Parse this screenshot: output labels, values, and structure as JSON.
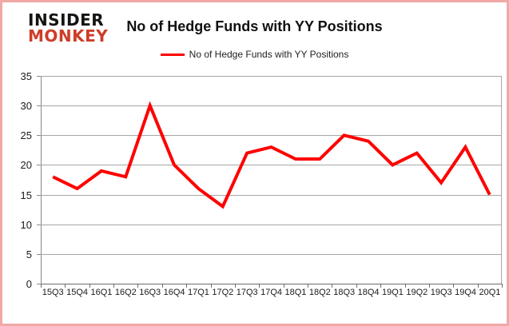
{
  "logo": {
    "line1": "INSIDER",
    "line2": "MONKEY",
    "line1_color": "#161413",
    "line2_color": "#ce3c28"
  },
  "title": "No of Hedge Funds with YY Positions",
  "legend": {
    "label": "No of Hedge Funds with YY Positions",
    "swatch_color": "#ff0000"
  },
  "frame_border_color": "#f0a9a6",
  "chart_data": {
    "type": "line",
    "title": "No of Hedge Funds with YY Positions",
    "xlabel": "",
    "ylabel": "",
    "categories": [
      "15Q3",
      "15Q4",
      "16Q1",
      "16Q2",
      "16Q3",
      "16Q4",
      "17Q1",
      "17Q2",
      "17Q3",
      "17Q4",
      "18Q1",
      "18Q2",
      "18Q3",
      "18Q4",
      "19Q1",
      "19Q2",
      "19Q3",
      "19Q4",
      "20Q1"
    ],
    "series": [
      {
        "name": "No of Hedge Funds with YY Positions",
        "color": "#ff0000",
        "line_width": 4,
        "values": [
          18,
          16,
          19,
          18,
          30,
          20,
          16,
          13,
          22,
          23,
          21,
          21,
          25,
          24,
          20,
          22,
          17,
          23,
          15
        ]
      }
    ],
    "ylim": [
      0,
      35
    ],
    "yticks": [
      0,
      5,
      10,
      15,
      20,
      25,
      30,
      35
    ],
    "grid": true,
    "gridline_color": "#a6a6a6",
    "legend_position": "top"
  }
}
